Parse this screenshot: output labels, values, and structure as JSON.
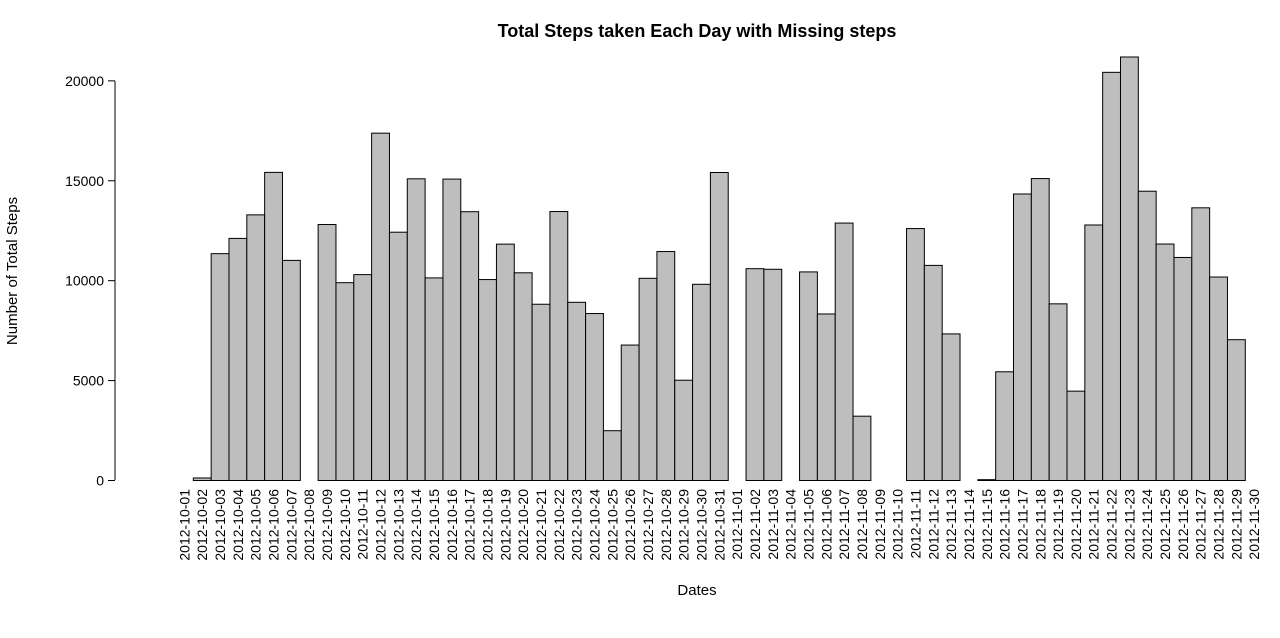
{
  "chart_data": {
    "type": "bar",
    "title": "Total Steps taken Each Day with Missing steps",
    "xlabel": "Dates",
    "ylabel": "Number of Total Steps",
    "ylim": [
      0,
      21194
    ],
    "y_ticks": [
      0,
      5000,
      10000,
      15000,
      20000
    ],
    "y_tick_labels": [
      "0",
      "5000",
      "10000",
      "15000",
      "20000"
    ],
    "bar_color": "#bebebe",
    "grid": false,
    "legend": "none",
    "categories": [
      "2012-10-01",
      "2012-10-02",
      "2012-10-03",
      "2012-10-04",
      "2012-10-05",
      "2012-10-06",
      "2012-10-07",
      "2012-10-08",
      "2012-10-09",
      "2012-10-10",
      "2012-10-11",
      "2012-10-12",
      "2012-10-13",
      "2012-10-14",
      "2012-10-15",
      "2012-10-16",
      "2012-10-17",
      "2012-10-18",
      "2012-10-19",
      "2012-10-20",
      "2012-10-21",
      "2012-10-22",
      "2012-10-23",
      "2012-10-24",
      "2012-10-25",
      "2012-10-26",
      "2012-10-27",
      "2012-10-28",
      "2012-10-29",
      "2012-10-30",
      "2012-10-31",
      "2012-11-01",
      "2012-11-02",
      "2012-11-03",
      "2012-11-04",
      "2012-11-05",
      "2012-11-06",
      "2012-11-07",
      "2012-11-08",
      "2012-11-09",
      "2012-11-10",
      "2012-11-11",
      "2012-11-12",
      "2012-11-13",
      "2012-11-14",
      "2012-11-15",
      "2012-11-16",
      "2012-11-17",
      "2012-11-18",
      "2012-11-19",
      "2012-11-20",
      "2012-11-21",
      "2012-11-22",
      "2012-11-23",
      "2012-11-24",
      "2012-11-25",
      "2012-11-26",
      "2012-11-27",
      "2012-11-28",
      "2012-11-29",
      "2012-11-30"
    ],
    "values": [
      null,
      126,
      11352,
      12116,
      13294,
      15420,
      11015,
      null,
      12811,
      9900,
      10304,
      17382,
      12426,
      15098,
      10139,
      15084,
      13452,
      10056,
      11829,
      10395,
      8821,
      13460,
      8918,
      8355,
      2492,
      6778,
      10119,
      11458,
      5018,
      9819,
      15414,
      null,
      10600,
      10571,
      null,
      10439,
      8334,
      12883,
      3219,
      null,
      null,
      12608,
      10765,
      7336,
      null,
      41,
      5441,
      14339,
      15110,
      8841,
      4472,
      12787,
      20427,
      21194,
      14478,
      11834,
      11162,
      13646,
      10183,
      7047,
      null
    ]
  }
}
